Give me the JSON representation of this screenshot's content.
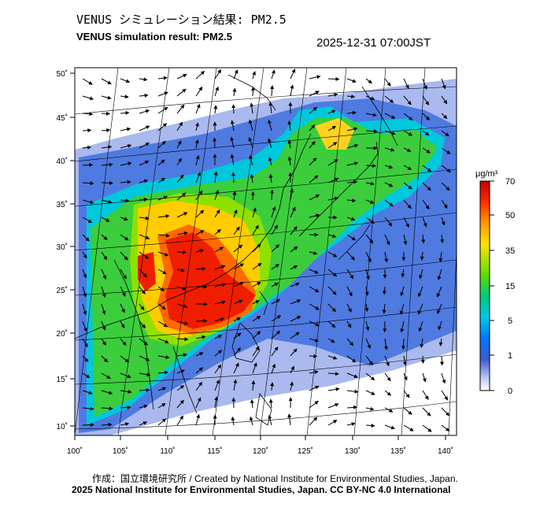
{
  "header": {
    "title_jp": "VENUS シミュレーション結果: PM2.5",
    "title_en": "VENUS simulation result: PM2.5",
    "timestamp": "2025-12-31 07:00JST"
  },
  "map": {
    "lat_labels": [
      "50˚",
      "45˚",
      "40˚",
      "35˚",
      "30˚",
      "25˚",
      "20˚",
      "15˚",
      "10˚"
    ],
    "lon_labels": [
      "100˚",
      "105˚",
      "110˚",
      "115˚",
      "120˚",
      "125˚",
      "130˚",
      "135˚",
      "140˚"
    ],
    "land_color": "#ffffff",
    "coast_color": "#000000"
  },
  "colorbar": {
    "unit": "μg/m³",
    "labels": [
      "70",
      "50",
      "35",
      "15",
      "5",
      "1",
      "0"
    ],
    "colors": [
      "#d70000",
      "#ff3300",
      "#ff9900",
      "#ffe600",
      "#66dd00",
      "#00c800",
      "#00d2b4",
      "#0096ff",
      "#1e46c8",
      "#c8d2f5",
      "#ffffff"
    ]
  },
  "footer": {
    "credit_line1": "作成：国立環境研究所 / Created by National Institute for Environmental Studies, Japan.",
    "credit_line2": "2025 National Institute for Environmental Studies, Japan. CC BY-NC 4.0 International"
  }
}
